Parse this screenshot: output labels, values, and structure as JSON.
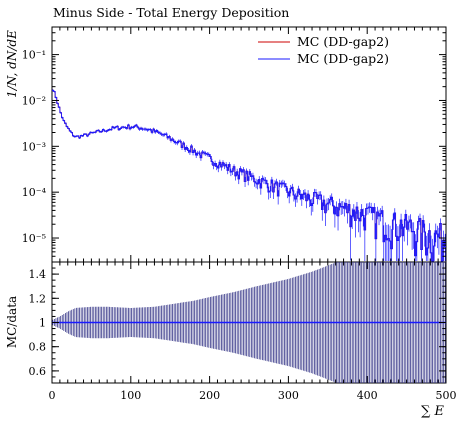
{
  "chart_data": [
    {
      "type": "line",
      "title": "Minus Side - Total Energy Deposition",
      "ylabel": "1/N, dN/dE",
      "xlim": [
        0,
        500
      ],
      "ylim": [
        3e-06,
        0.4
      ],
      "yscale": "log",
      "ytick_labels": [
        "10⁻⁵",
        "10⁻⁴",
        "10⁻³",
        "10⁻²",
        "10⁻¹"
      ],
      "ytick_values": [
        1e-05,
        0.0001,
        0.001,
        0.01,
        0.1
      ],
      "legend": "top-right",
      "series": [
        {
          "name": "MC (DD-gap2)",
          "color": "#cc0000",
          "x": [
            0,
            5,
            10,
            15,
            20,
            25,
            30,
            40,
            50,
            60,
            70,
            80,
            90,
            100,
            110,
            120,
            130,
            140,
            150,
            160,
            170,
            180,
            190,
            200,
            210,
            220,
            230,
            240,
            250,
            260,
            270,
            280,
            290,
            300,
            310,
            320,
            330,
            340,
            350,
            360,
            370,
            380,
            390,
            400,
            410,
            420,
            430,
            440,
            450,
            460,
            470,
            480,
            490,
            500
          ],
          "y": [
            0.02,
            0.012,
            0.006,
            0.0035,
            0.0025,
            0.0019,
            0.0016,
            0.0017,
            0.0019,
            0.0021,
            0.0023,
            0.0025,
            0.0026,
            0.0027,
            0.0026,
            0.0024,
            0.0021,
            0.0018,
            0.0015,
            0.0012,
            0.001,
            0.0008,
            0.00065,
            0.00055,
            0.00045,
            0.00037,
            0.0003,
            0.00026,
            0.00022,
            0.00019,
            0.00016,
            0.00014,
            0.00012,
            0.000105,
            9e-05,
            8e-05,
            7e-05,
            6.2e-05,
            5.5e-05,
            5e-05,
            4.5e-05,
            4e-05,
            3.6e-05,
            3.2e-05,
            2.8e-05,
            2.5e-05,
            2.2e-05,
            2e-05,
            1.8e-05,
            1.6e-05,
            1.4e-05,
            1.2e-05,
            1.1e-05,
            1e-05
          ]
        },
        {
          "name": "MC (DD-gap2)",
          "color": "#1a1aff",
          "x": [
            0,
            5,
            10,
            15,
            20,
            25,
            30,
            40,
            50,
            60,
            70,
            80,
            90,
            100,
            110,
            120,
            130,
            140,
            150,
            160,
            170,
            180,
            190,
            200,
            210,
            220,
            230,
            240,
            250,
            260,
            270,
            280,
            290,
            300,
            310,
            320,
            330,
            340,
            350,
            360,
            370,
            380,
            390,
            400,
            410,
            420,
            430,
            440,
            450,
            460,
            470,
            480,
            490,
            500
          ],
          "y": [
            0.02,
            0.012,
            0.006,
            0.0035,
            0.0025,
            0.0019,
            0.0016,
            0.0017,
            0.0019,
            0.0021,
            0.0023,
            0.0025,
            0.0026,
            0.0027,
            0.0026,
            0.0024,
            0.0021,
            0.0018,
            0.0015,
            0.0012,
            0.001,
            0.0008,
            0.00065,
            0.00055,
            0.00045,
            0.00037,
            0.0003,
            0.00026,
            0.00022,
            0.00019,
            0.00016,
            0.00014,
            0.00012,
            0.000105,
            9e-05,
            8e-05,
            7e-05,
            6.2e-05,
            5.5e-05,
            5e-05,
            4.5e-05,
            4e-05,
            3.6e-05,
            3.2e-05,
            2.8e-05,
            2.5e-05,
            2.2e-05,
            2e-05,
            1.8e-05,
            1.6e-05,
            1.4e-05,
            1.2e-05,
            1.1e-05,
            1e-05
          ]
        }
      ]
    },
    {
      "type": "line",
      "ylabel": "MC/data",
      "xlabel": "∑ E",
      "xlim": [
        0,
        500
      ],
      "ylim": [
        0.5,
        1.5
      ],
      "xtick_labels": [
        "0",
        "100",
        "200",
        "300",
        "400",
        "500"
      ],
      "xtick_values": [
        0,
        100,
        200,
        300,
        400,
        500
      ],
      "ytick_labels": [
        "0.6",
        "0.8",
        "1",
        "1.2",
        "1.4"
      ],
      "ytick_values": [
        0.6,
        0.8,
        1.0,
        1.2,
        1.4
      ],
      "reference": 1.0,
      "error_band": {
        "x": [
          0,
          10,
          20,
          30,
          50,
          70,
          100,
          130,
          150,
          180,
          200,
          230,
          260,
          300,
          330,
          350,
          380,
          400,
          430,
          460,
          500
        ],
        "half_width": [
          0.02,
          0.05,
          0.09,
          0.12,
          0.13,
          0.13,
          0.12,
          0.13,
          0.15,
          0.18,
          0.21,
          0.25,
          0.3,
          0.36,
          0.42,
          0.47,
          0.55,
          0.6,
          0.6,
          0.6,
          0.6
        ]
      },
      "series": [
        {
          "name": "MC (DD-gap2)",
          "color": "#cc0000",
          "x": [
            0,
            500
          ],
          "y": [
            1.0,
            1.0
          ]
        },
        {
          "name": "MC (DD-gap2)",
          "color": "#1a1aff",
          "x": [
            0,
            500
          ],
          "y": [
            1.0,
            1.0
          ]
        }
      ]
    }
  ]
}
